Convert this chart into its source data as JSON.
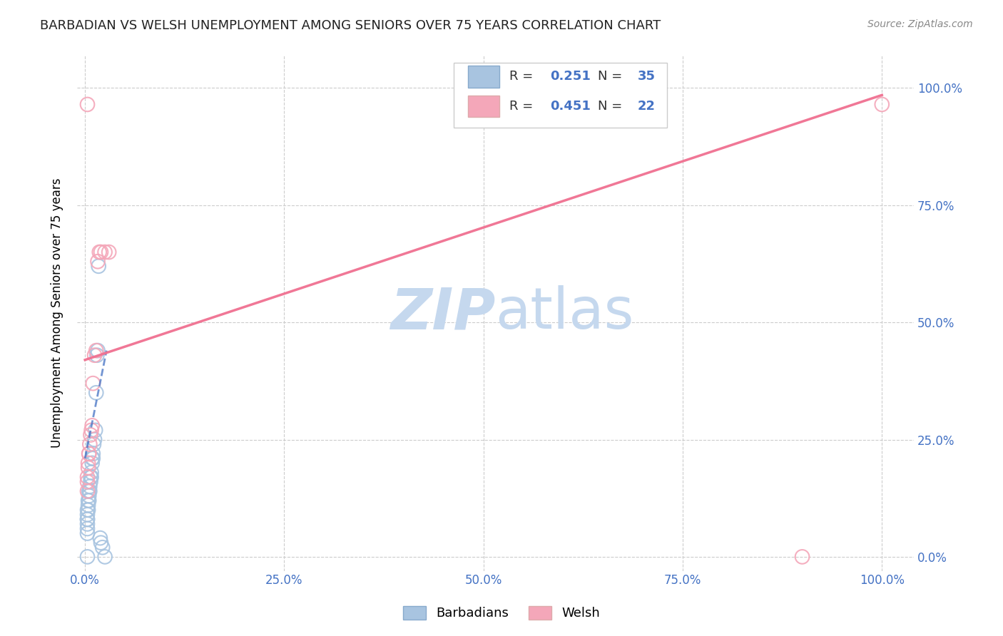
{
  "title": "BARBADIAN VS WELSH UNEMPLOYMENT AMONG SENIORS OVER 75 YEARS CORRELATION CHART",
  "source": "Source: ZipAtlas.com",
  "ylabel": "Unemployment Among Seniors over 75 years",
  "x_tick_labels": [
    "0.0%",
    "25.0%",
    "50.0%",
    "75.0%",
    "100.0%"
  ],
  "x_tick_values": [
    0.0,
    0.25,
    0.5,
    0.75,
    1.0
  ],
  "y_tick_labels": [
    "0.0%",
    "25.0%",
    "50.0%",
    "75.0%",
    "100.0%"
  ],
  "y_tick_values": [
    0.0,
    0.25,
    0.5,
    0.75,
    1.0
  ],
  "xlim": [
    -0.01,
    1.04
  ],
  "ylim": [
    -0.03,
    1.07
  ],
  "barbadian_color": "#a8c4e0",
  "welsh_color": "#f4a7b9",
  "barbadian_line_color": "#4472c4",
  "welsh_line_color": "#f07090",
  "R_barbadian": 0.251,
  "N_barbadian": 35,
  "R_welsh": 0.451,
  "N_welsh": 22,
  "legend_label_barbadian": "Barbadians",
  "legend_label_welsh": "Welsh",
  "watermark_zip": "ZIP",
  "watermark_atlas": "atlas",
  "watermark_color_zip": "#c5d8ee",
  "watermark_color_atlas": "#c5d8ee",
  "grid_color": "#cccccc",
  "title_color": "#222222",
  "title_fontsize": 13,
  "source_color": "#888888",
  "barbadian_x": [
    0.003,
    0.003,
    0.003,
    0.003,
    0.003,
    0.003,
    0.003,
    0.004,
    0.004,
    0.004,
    0.005,
    0.005,
    0.005,
    0.006,
    0.006,
    0.007,
    0.007,
    0.008,
    0.008,
    0.009,
    0.009,
    0.01,
    0.01,
    0.011,
    0.012,
    0.013,
    0.014,
    0.015,
    0.016,
    0.017,
    0.019,
    0.02,
    0.022,
    0.025,
    0.003
  ],
  "barbadian_y": [
    0.05,
    0.06,
    0.07,
    0.08,
    0.08,
    0.09,
    0.1,
    0.1,
    0.11,
    0.12,
    0.12,
    0.13,
    0.14,
    0.14,
    0.15,
    0.16,
    0.17,
    0.17,
    0.18,
    0.2,
    0.21,
    0.21,
    0.22,
    0.24,
    0.25,
    0.27,
    0.35,
    0.43,
    0.44,
    0.62,
    0.04,
    0.03,
    0.02,
    0.0,
    0.0
  ],
  "welsh_x": [
    0.003,
    0.003,
    0.003,
    0.004,
    0.004,
    0.005,
    0.005,
    0.006,
    0.007,
    0.008,
    0.009,
    0.01,
    0.012,
    0.014,
    0.016,
    0.018,
    0.02,
    0.025,
    0.03,
    0.003,
    0.9,
    1.0
  ],
  "welsh_y": [
    0.14,
    0.16,
    0.17,
    0.19,
    0.2,
    0.22,
    0.22,
    0.24,
    0.26,
    0.27,
    0.28,
    0.37,
    0.43,
    0.44,
    0.63,
    0.65,
    0.65,
    0.65,
    0.65,
    0.965,
    0.0,
    0.965
  ],
  "barbadian_trendline_x": [
    0.0,
    0.027
  ],
  "barbadian_trendline_y": [
    0.21,
    0.44
  ],
  "welsh_trendline_x": [
    0.0,
    1.0
  ],
  "welsh_trendline_y": [
    0.42,
    0.985
  ]
}
